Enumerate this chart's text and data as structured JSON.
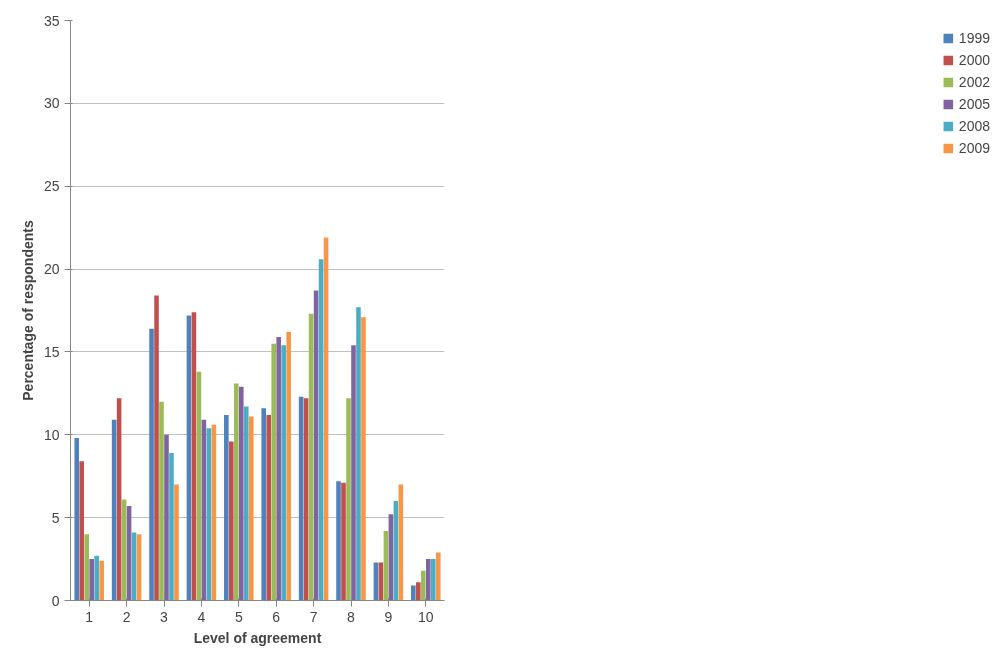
{
  "chart_data": {
    "type": "bar",
    "xlabel": "Level of agreement",
    "ylabel": "Percentage of respondents",
    "categories": [
      "1",
      "2",
      "3",
      "4",
      "5",
      "6",
      "7",
      "8",
      "9",
      "10"
    ],
    "series": [
      {
        "name": "1999",
        "color": "#4f81bd",
        "values": [
          9.8,
          10.9,
          16.4,
          17.2,
          11.2,
          11.6,
          12.3,
          7.2,
          2.3,
          0.9
        ]
      },
      {
        "name": "2000",
        "color": "#c0504d",
        "values": [
          8.4,
          12.2,
          18.4,
          17.4,
          9.6,
          11.2,
          12.2,
          7.1,
          2.3,
          1.1
        ]
      },
      {
        "name": "2002",
        "color": "#9bbb59",
        "values": [
          4.0,
          6.1,
          12.0,
          13.8,
          13.1,
          15.5,
          17.3,
          12.2,
          4.2,
          1.8
        ]
      },
      {
        "name": "2005",
        "color": "#8064a2",
        "values": [
          2.5,
          5.7,
          10.0,
          10.9,
          12.9,
          15.9,
          18.7,
          15.4,
          5.2,
          2.5
        ]
      },
      {
        "name": "2008",
        "color": "#4bacc6",
        "values": [
          2.7,
          4.1,
          8.9,
          10.4,
          11.7,
          15.4,
          20.6,
          17.7,
          6.0,
          2.5
        ]
      },
      {
        "name": "2009",
        "color": "#f79646",
        "values": [
          2.4,
          4.0,
          7.0,
          10.6,
          11.1,
          16.2,
          21.9,
          17.1,
          7.0,
          2.9
        ]
      }
    ],
    "ylim": [
      0,
      35
    ],
    "yticks": [
      0,
      5,
      10,
      15,
      20,
      25,
      30,
      35
    ],
    "grid": "y",
    "legend": "right"
  }
}
